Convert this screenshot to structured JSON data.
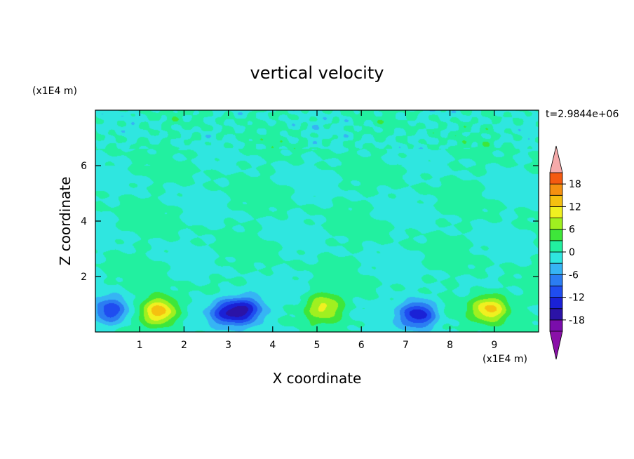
{
  "chart_data": {
    "type": "heatmap",
    "title": "vertical velocity",
    "xlabel": "X coordinate",
    "ylabel": "Z coordinate",
    "x_unit": "(x1E4 m)",
    "y_unit": "(x1E4 m)",
    "time_label": "t=2.9844e+06",
    "xlim": [
      0,
      10
    ],
    "ylim": [
      0,
      8
    ],
    "x_ticks": [
      1,
      2,
      3,
      4,
      5,
      6,
      7,
      8,
      9
    ],
    "y_ticks": [
      2,
      4,
      6
    ],
    "grid": false,
    "colorbar": {
      "placement": "right",
      "levels": [
        -21,
        -18,
        -15,
        -12,
        -9,
        -6,
        -3,
        0,
        3,
        6,
        9,
        12,
        15,
        18,
        21
      ],
      "tick_labels": [
        "18",
        "12",
        "6",
        "0",
        "-6",
        "-12",
        "-18"
      ],
      "tick_values": [
        18,
        12,
        6,
        0,
        -6,
        -12,
        -18
      ],
      "colors": [
        "#7a0dab",
        "#2b13a6",
        "#1a21d6",
        "#1f4df0",
        "#2b7df2",
        "#36b4f4",
        "#2fe6e0",
        "#22f0a0",
        "#3ee63a",
        "#a0f020",
        "#f0f020",
        "#f5c010",
        "#f59010",
        "#f55a10",
        "#f02010"
      ],
      "over_color": "#f5aaaa",
      "under_color": "#8a10a8"
    },
    "features": [
      {
        "x": 0.35,
        "z": 0.75,
        "value": -12
      },
      {
        "x": 1.45,
        "z": 0.75,
        "value": 15
      },
      {
        "x": 2.95,
        "z": 0.7,
        "value": -12
      },
      {
        "x": 3.4,
        "z": 0.8,
        "value": -13
      },
      {
        "x": 5.15,
        "z": 0.9,
        "value": 10
      },
      {
        "x": 7.3,
        "z": 0.65,
        "value": -15
      },
      {
        "x": 8.9,
        "z": 0.85,
        "value": 14
      }
    ]
  }
}
